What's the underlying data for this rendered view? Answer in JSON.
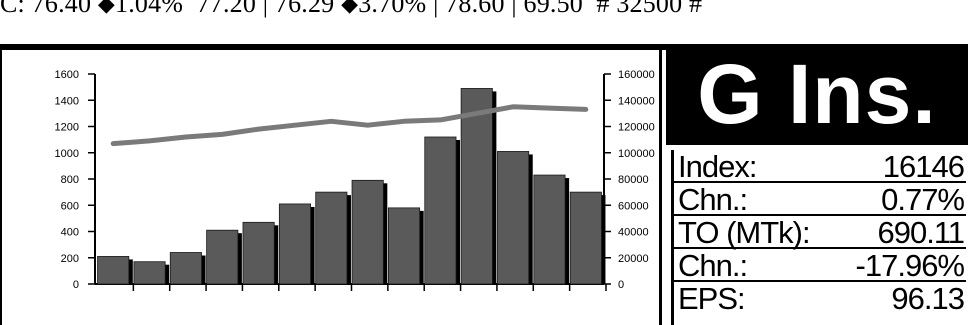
{
  "ticker": {
    "close_label": "C:",
    "close": "76.40",
    "chg1": "1.04%",
    "hi_lo": "77.20 | 76.29",
    "chg2": "3.70%",
    "range": "78.60 | 69.50",
    "volume": "# 32500 #",
    "arrow": "◆"
  },
  "title": "G Ins.",
  "stats": [
    {
      "label": "Index:",
      "value": "16146"
    },
    {
      "label": "Chn.:",
      "value": "0.77%"
    },
    {
      "label": "TO (MTk):",
      "value": "690.11"
    },
    {
      "label": "Chn.:",
      "value": "-17.96%"
    },
    {
      "label": "EPS:",
      "value": "96.13"
    }
  ],
  "chart_data": {
    "type": "bar",
    "bar_color": "#5a5a5a",
    "line_color": "#7a7a7a",
    "left_axis": {
      "min": 0,
      "max": 1600,
      "ticks": [
        0,
        200,
        400,
        600,
        800,
        1000,
        1200,
        1400,
        1600
      ]
    },
    "right_axis": {
      "min": 0,
      "max": 160000,
      "ticks": [
        0,
        20000,
        40000,
        60000,
        80000,
        100000,
        120000,
        140000,
        160000
      ]
    },
    "bar_values": [
      210,
      170,
      240,
      410,
      470,
      610,
      700,
      790,
      580,
      1120,
      1490,
      1010,
      830,
      700
    ],
    "line_values": [
      107000,
      109000,
      112000,
      114000,
      118000,
      121000,
      124000,
      121000,
      124000,
      125000,
      130000,
      135000,
      134000,
      133000
    ],
    "grid": false
  }
}
